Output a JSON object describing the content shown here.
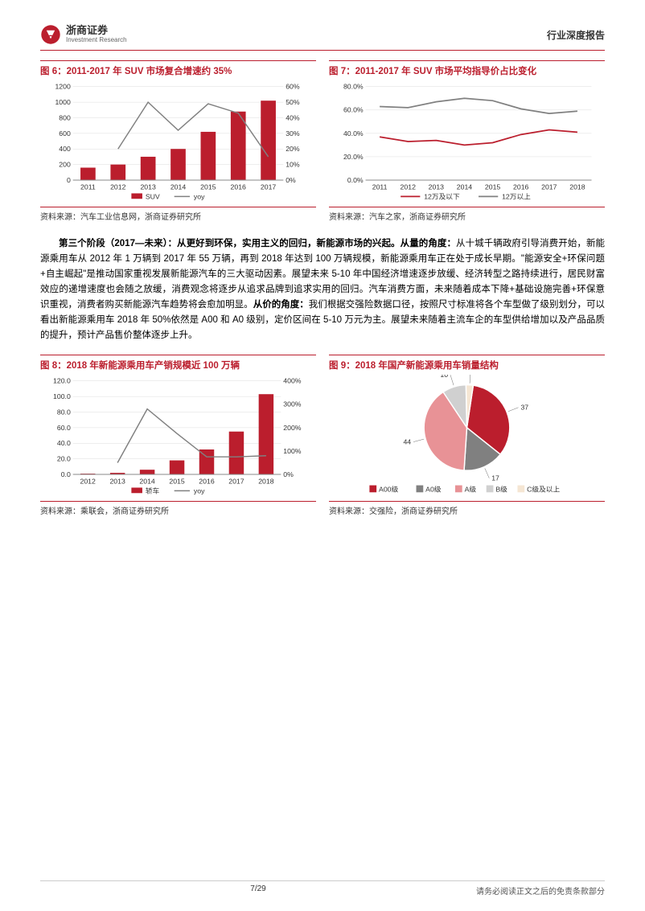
{
  "header": {
    "logo_cn": "浙商证券",
    "logo_en": "Investment Research",
    "right": "行业深度报告"
  },
  "chart6": {
    "title": "图 6：2011-2017 年 SUV 市场复合增速约 35%",
    "source": "资料来源：汽车工业信息网，浙商证券研究所",
    "type": "bar+line",
    "categories": [
      "2011",
      "2012",
      "2013",
      "2014",
      "2015",
      "2016",
      "2017"
    ],
    "bars": [
      160,
      200,
      300,
      400,
      620,
      880,
      1020
    ],
    "line": [
      null,
      20,
      50,
      32,
      49,
      43,
      15
    ],
    "left_ticks": [
      0,
      200,
      400,
      600,
      800,
      1000,
      1200
    ],
    "right_ticks": [
      "0%",
      "10%",
      "20%",
      "30%",
      "40%",
      "50%",
      "60%"
    ],
    "bar_color": "#bb1e2d",
    "line_color": "#808080",
    "legend": [
      "SUV",
      "yoy"
    ]
  },
  "chart7": {
    "title": "图 7：2011-2017 年 SUV 市场平均指导价占比变化",
    "source": "资料来源：汽车之家，浙商证券研究所",
    "type": "line",
    "categories": [
      "2011",
      "2012",
      "2013",
      "2014",
      "2015",
      "2016",
      "2017",
      "2018"
    ],
    "series1": [
      37,
      33,
      34,
      30,
      32,
      39,
      43,
      41
    ],
    "series2": [
      63,
      62,
      67,
      70,
      68,
      61,
      57,
      59
    ],
    "yticks": [
      "0.0%",
      "20.0%",
      "40.0%",
      "60.0%",
      "80.0%"
    ],
    "color1": "#bb1e2d",
    "color2": "#808080",
    "legend": [
      "12万及以下",
      "12万以上"
    ]
  },
  "paragraph": "第三个阶段（2017—未来）：从更好到环保，实用主义的回归，新能源市场的兴起。从量的角度：从十城千辆政府引导消费开始，新能源乘用车从 2012 年 1 万辆到 2017 年 55 万辆，再到 2018 年达到 100 万辆规模，新能源乘用车正在处于成长早期。\"能源安全+环保问题+自主崛起\"是推动国家重视发展新能源汽车的三大驱动因素。展望未来 5-10 年中国经济增速逐步放缓、经济转型之路持续进行，居民财富效应的递增速度也会随之放缓，消费观念将逐步从追求品牌到追求实用的回归。汽车消费方面，未来随着成本下降+基础设施完善+环保意识重视，消费者购买新能源汽车趋势将会愈加明显。从价的角度：我们根据交强险数据口径，按照尺寸标准将各个车型做了级别划分，可以看出新能源乘用车 2018 年 50%依然是 A00 和 A0 级别，定价区间在 5-10 万元为主。展望未来随着主流车企的车型供给增加以及产品品质的提升，预计产品售价整体逐步上升。",
  "chart8": {
    "title": "图 8：2018 年新能源乘用车产销规模近 100 万辆",
    "source": "资料来源：乘联会，浙商证券研究所",
    "type": "bar+line",
    "categories": [
      "2012",
      "2013",
      "2014",
      "2015",
      "2016",
      "2017",
      "2018"
    ],
    "bars": [
      1,
      2,
      6,
      18,
      32,
      55,
      103
    ],
    "line": [
      null,
      50,
      280,
      175,
      75,
      75,
      80
    ],
    "left_ticks": [
      "0.0",
      "20.0",
      "40.0",
      "60.0",
      "80.0",
      "100.0",
      "120.0"
    ],
    "right_ticks": [
      "0%",
      "100%",
      "200%",
      "300%",
      "400%"
    ],
    "bar_color": "#bb1e2d",
    "line_color": "#808080",
    "legend": [
      "轿车",
      "yoy"
    ]
  },
  "chart9": {
    "title": "图 9：2018 年国产新能源乘用车销量结构",
    "source": "资料来源：交强险，浙商证券研究所",
    "type": "pie",
    "slices": [
      {
        "label": "A00级",
        "value": 37,
        "color": "#bb1e2d"
      },
      {
        "label": "A0级",
        "value": 17,
        "color": "#808080"
      },
      {
        "label": "A级",
        "value": 44,
        "color": "#e89296"
      },
      {
        "label": "B级",
        "value": 10,
        "color": "#d0d0d0"
      },
      {
        "label": "C级及以上",
        "value": 3,
        "color": "#f5e6d3"
      }
    ],
    "legend": [
      "A00级",
      "A0级",
      "A级",
      "B级",
      "C级及以上"
    ]
  },
  "footer": {
    "page": "7/29",
    "disclaimer": "请务必阅读正文之后的免责条款部分"
  }
}
